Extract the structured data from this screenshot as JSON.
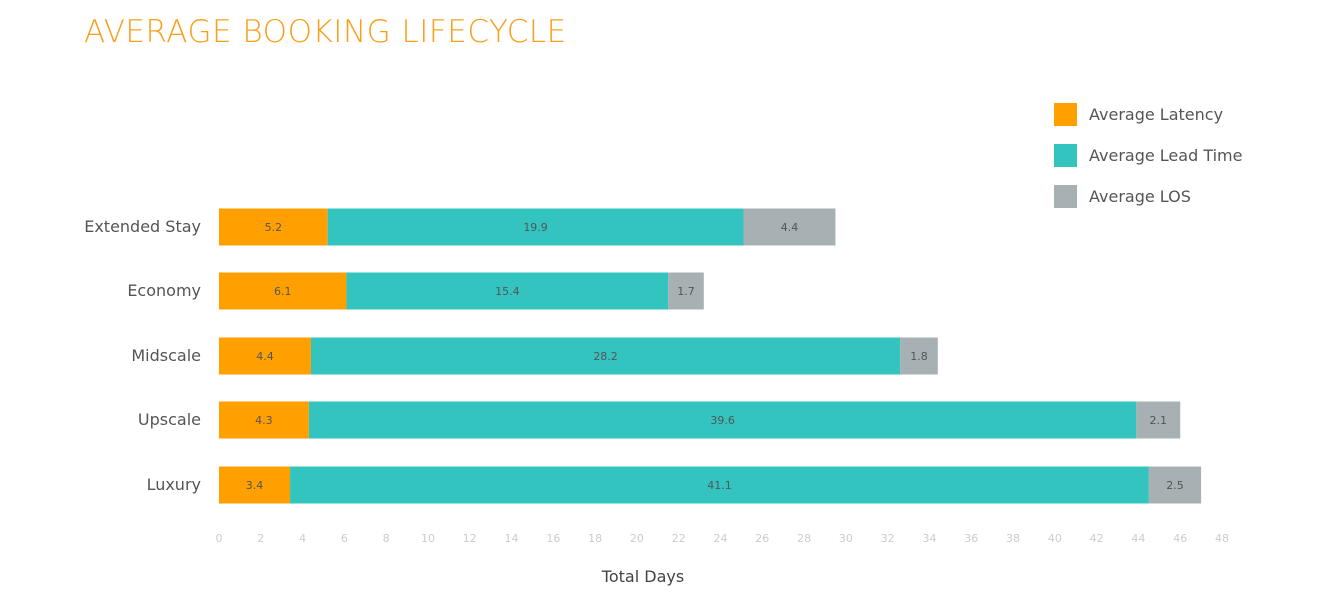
{
  "colors": {
    "title": "#F9A01B",
    "latency": "#FF9F00",
    "lead_time": "#33C4C0",
    "los": "#A7B0B2",
    "tick": "#CCCCCC",
    "category": "#555555",
    "segment_label": "#555555"
  },
  "chart_data": {
    "type": "bar",
    "orientation": "horizontal",
    "stacked": true,
    "title": "AVERAGE BOOKING LIFECYCLE",
    "xlabel": "Total Days",
    "ylabel": "",
    "xlim": [
      0,
      48
    ],
    "x_ticks": [
      0,
      2,
      4,
      6,
      8,
      10,
      12,
      14,
      16,
      18,
      20,
      22,
      24,
      26,
      28,
      30,
      32,
      34,
      36,
      38,
      40,
      42,
      44,
      46,
      48
    ],
    "categories": [
      "Extended Stay",
      "Economy",
      "Midscale",
      "Upscale",
      "Luxury"
    ],
    "series": [
      {
        "name": "Average Latency",
        "color_key": "latency",
        "values": [
          5.2,
          6.1,
          4.4,
          4.3,
          3.4
        ],
        "labels": [
          "5.2",
          "6.1",
          "4.4",
          "4.3",
          "3.4"
        ]
      },
      {
        "name": "Average Lead Time",
        "color_key": "lead_time",
        "values": [
          19.9,
          15.4,
          28.2,
          39.6,
          41.1
        ],
        "labels": [
          "19.9",
          "15.4",
          "28.2",
          "39.6",
          "41.1"
        ]
      },
      {
        "name": "Average LOS",
        "color_key": "los",
        "values": [
          4.4,
          1.7,
          1.8,
          2.1,
          2.5
        ],
        "labels": [
          "4.4",
          "1.7",
          "1.8",
          "2.1",
          "2.5"
        ]
      }
    ],
    "grid": false,
    "legend_position": "top-right"
  }
}
